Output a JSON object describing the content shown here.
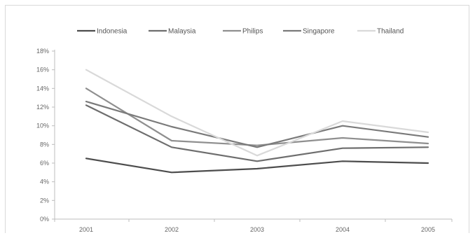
{
  "chart_data": {
    "type": "line",
    "title": "",
    "xlabel": "",
    "ylabel": "",
    "categories": [
      "2001",
      "2002",
      "2003",
      "2004",
      "2005"
    ],
    "ylim": [
      0,
      18
    ],
    "yticks": [
      "0%",
      "2%",
      "4%",
      "6%",
      "8%",
      "10%",
      "12%",
      "14%",
      "16%",
      "18%"
    ],
    "grid": false,
    "legend_position": "top",
    "series": [
      {
        "name": "Indonesia",
        "color": "#4d4d4d",
        "values": [
          6.5,
          5.0,
          5.4,
          6.2,
          6.0
        ]
      },
      {
        "name": "Malaysia",
        "color": "#6e6e6e",
        "values": [
          12.2,
          7.7,
          6.2,
          7.6,
          7.7
        ]
      },
      {
        "name": "Philips",
        "color": "#8f8f8f",
        "values": [
          14.0,
          8.4,
          7.9,
          8.7,
          8.1
        ]
      },
      {
        "name": "Singapore",
        "color": "#7a7a7a",
        "values": [
          12.6,
          9.9,
          7.7,
          10.0,
          8.8
        ]
      },
      {
        "name": "Thailand",
        "color": "#d9d9d9",
        "values": [
          16.0,
          11.0,
          6.8,
          10.5,
          9.3
        ]
      }
    ]
  }
}
